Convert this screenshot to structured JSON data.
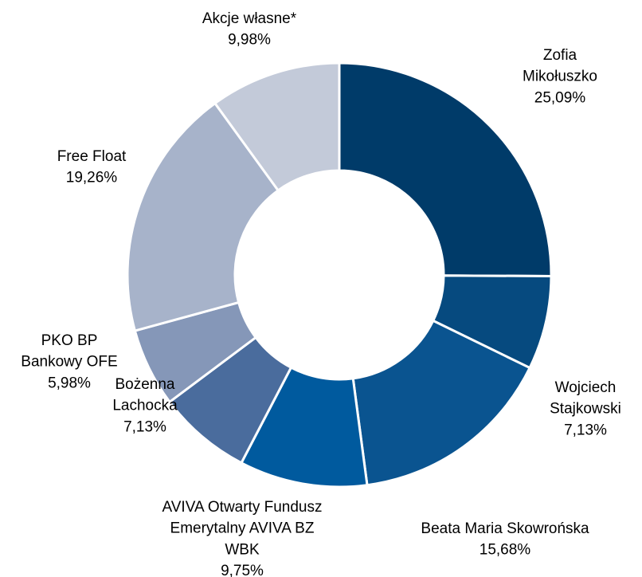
{
  "chart_data": {
    "type": "donut",
    "categories": [
      "Zofia\nMikołuszko",
      "Wojciech\nStajkowski",
      "Beata Maria Skowrońska",
      "AVIVA Otwarty Fundusz\nEmerytalny AVIVA BZ\nWBK",
      "Bożenna\nLachocka",
      "PKO BP\nBankowy OFE",
      "Free Float",
      "Akcje własne*"
    ],
    "values": [
      25.09,
      7.13,
      15.68,
      9.75,
      7.13,
      5.98,
      19.26,
      9.98
    ],
    "value_labels": [
      "25,09%",
      "7,13%",
      "15,68%",
      "9,75%",
      "7,13%",
      "5,98%",
      "19,26%",
      "9,98%"
    ],
    "colors": [
      "#003b69",
      "#064a7f",
      "#0a5490",
      "#005a9e",
      "#4a6c9d",
      "#8597b8",
      "#a7b3ca",
      "#c3cad9"
    ]
  }
}
